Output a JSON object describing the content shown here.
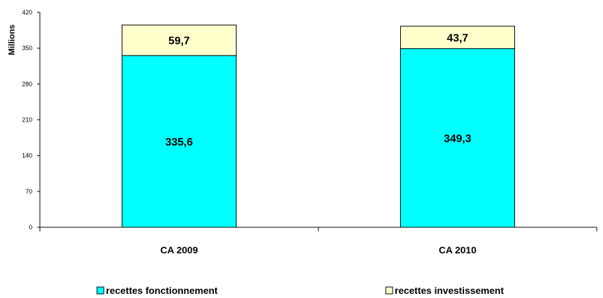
{
  "chart_data": {
    "type": "bar",
    "stacked": true,
    "categories": [
      "CA 2009",
      "CA 2010"
    ],
    "series": [
      {
        "name": "recettes fonctionnement",
        "values": [
          335.6,
          349.3
        ],
        "labels": [
          "335,6",
          "349,3"
        ],
        "color": "#00ffff"
      },
      {
        "name": "recettes investissement",
        "values": [
          59.7,
          43.7
        ],
        "labels": [
          "59,7",
          "43,7"
        ],
        "color": "#ffffcc"
      }
    ],
    "ylabel": "Millions",
    "ylim": [
      0,
      420
    ],
    "yticks": [
      0,
      70,
      140,
      210,
      280,
      350,
      420
    ],
    "legend_position": "bottom",
    "grid": false
  }
}
